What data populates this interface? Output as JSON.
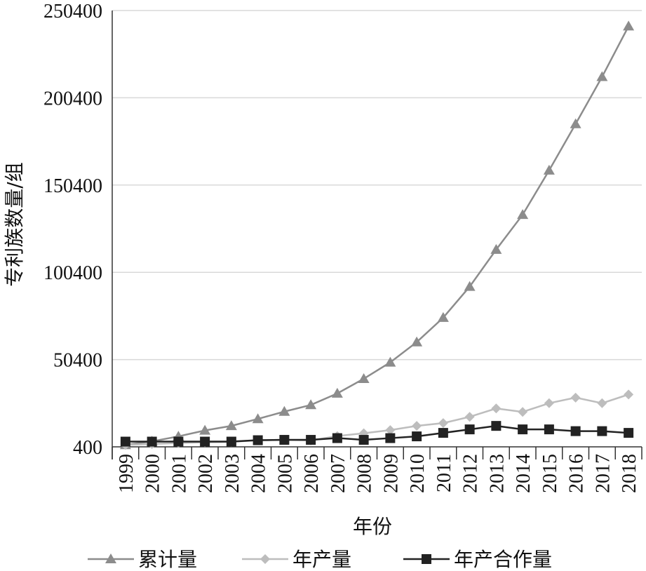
{
  "chart_data": {
    "type": "line",
    "title": "",
    "xlabel": "年份",
    "ylabel": "专利族数量/组",
    "ylim": [
      400,
      250400
    ],
    "yticks": [
      400,
      50400,
      100400,
      150400,
      200400,
      250400
    ],
    "grid": true,
    "legend_position": "bottom",
    "categories": [
      "1999",
      "2000",
      "2001",
      "2002",
      "2003",
      "2004",
      "2005",
      "2006",
      "2007",
      "2008",
      "2009",
      "2010",
      "2011",
      "2012",
      "2013",
      "2014",
      "2015",
      "2016",
      "2017",
      "2018"
    ],
    "series": [
      {
        "name": "累计量",
        "marker": "triangle",
        "color": "#8c8c8c",
        "values": [
          1500,
          3500,
          6400,
          9800,
          12400,
          16400,
          20600,
          24400,
          31000,
          39400,
          48800,
          60400,
          74400,
          92200,
          113400,
          133400,
          158800,
          185400,
          212400,
          241400
        ]
      },
      {
        "name": "年产量",
        "marker": "diamond",
        "color": "#bdbdbd",
        "values": [
          1500,
          2000,
          2600,
          3000,
          3200,
          4200,
          4400,
          4000,
          6600,
          8200,
          10000,
          12400,
          14000,
          17600,
          22400,
          20400,
          25400,
          28600,
          25400,
          30400
        ]
      },
      {
        "name": "年产合作量",
        "marker": "square",
        "color": "#222222",
        "values": [
          3400,
          3400,
          3400,
          3400,
          3400,
          4200,
          4400,
          4400,
          5400,
          4400,
          5400,
          6400,
          8400,
          10400,
          12400,
          10400,
          10400,
          9400,
          9400,
          8400
        ]
      }
    ]
  }
}
